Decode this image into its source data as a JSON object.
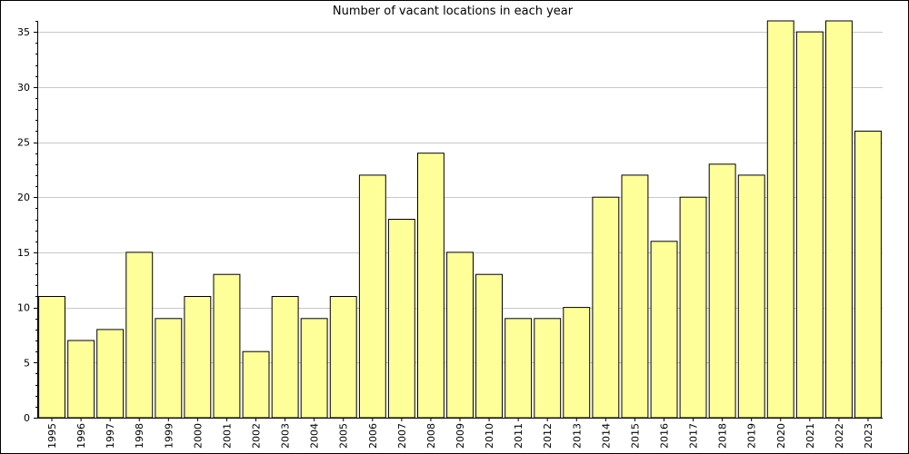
{
  "chart_data": {
    "type": "bar",
    "title": "Number of vacant locations in each year",
    "xlabel": "",
    "ylabel": "",
    "categories": [
      "1995",
      "1996",
      "1997",
      "1998",
      "1999",
      "2000",
      "2001",
      "2002",
      "2003",
      "2004",
      "2005",
      "2006",
      "2007",
      "2008",
      "2009",
      "2010",
      "2011",
      "2012",
      "2013",
      "2014",
      "2015",
      "2016",
      "2017",
      "2018",
      "2019",
      "2020",
      "2021",
      "2022",
      "2023"
    ],
    "values": [
      11,
      7,
      8,
      15,
      9,
      11,
      13,
      6,
      11,
      9,
      11,
      22,
      18,
      24,
      15,
      13,
      9,
      9,
      10,
      20,
      22,
      16,
      20,
      23,
      22,
      36,
      35,
      36,
      26
    ],
    "ylim": [
      0,
      36
    ],
    "yticks": [
      0,
      5,
      10,
      15,
      20,
      25,
      30,
      35
    ],
    "grid": true,
    "bar_color": "#ffff99",
    "bar_edge_color": "#000000",
    "grid_color": "#c8c8c8"
  }
}
